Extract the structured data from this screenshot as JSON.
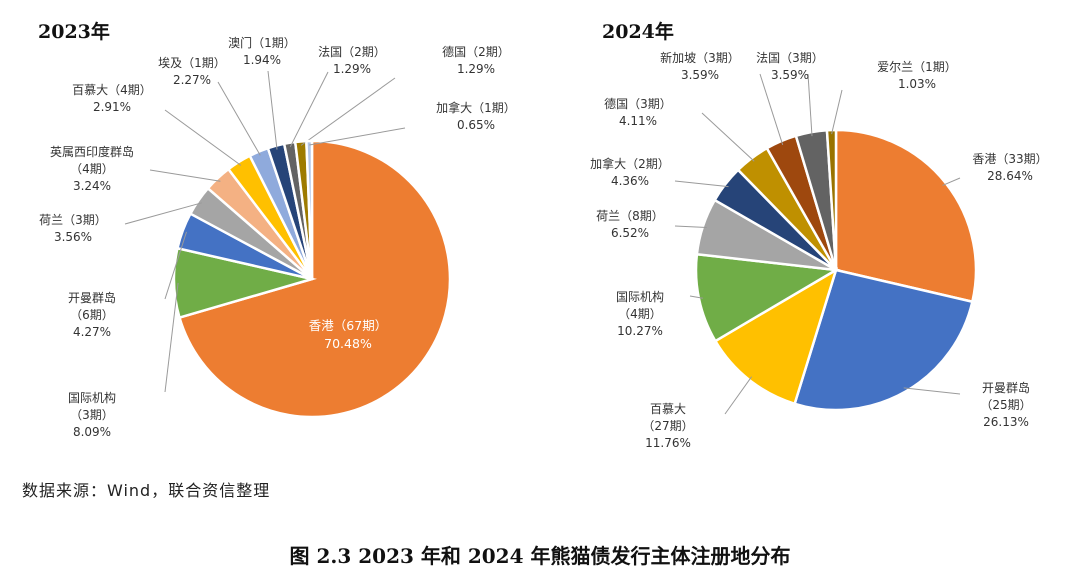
{
  "source": "数据来源：Wind，联合资信整理",
  "caption": "图 2.3    2023 年和 2024 年熊猫债发行主体注册地分布",
  "chart_data": [
    {
      "type": "pie",
      "title": "2023年",
      "series": [
        {
          "name": "香港（67期）",
          "value": 70.48,
          "label": "70.48%",
          "color": "#ED7D31"
        },
        {
          "name": "国际机构（3期）",
          "value": 8.09,
          "label": "8.09%",
          "color": "#70AD47"
        },
        {
          "name": "开曼群岛（6期）",
          "value": 4.27,
          "label": "4.27%",
          "color": "#4472C4"
        },
        {
          "name": "荷兰（3期）",
          "value": 3.56,
          "label": "3.56%",
          "color": "#A5A5A5"
        },
        {
          "name": "英属西印度群岛（4期）",
          "value": 3.24,
          "label": "3.24%",
          "color": "#F4B183"
        },
        {
          "name": "百慕大（4期）",
          "value": 2.91,
          "label": "2.91%",
          "color": "#FFC000"
        },
        {
          "name": "埃及（1期）",
          "value": 2.27,
          "label": "2.27%",
          "color": "#8FAADC"
        },
        {
          "name": "澳门（1期）",
          "value": 1.94,
          "label": "1.94%",
          "color": "#264478"
        },
        {
          "name": "法国（2期）",
          "value": 1.29,
          "label": "1.29%",
          "color": "#636363"
        },
        {
          "name": "德国（2期）",
          "value": 1.29,
          "label": "1.29%",
          "color": "#9E7B00"
        },
        {
          "name": "加拿大（1期）",
          "value": 0.65,
          "label": "0.65%",
          "color": "#B4C7E7"
        }
      ]
    },
    {
      "type": "pie",
      "title": "2024年",
      "series": [
        {
          "name": "香港（33期）",
          "value": 28.64,
          "label": "28.64%",
          "color": "#ED7D31"
        },
        {
          "name": "开曼群岛（25期）",
          "value": 26.13,
          "label": "26.13%",
          "color": "#4472C4"
        },
        {
          "name": "百慕大（27期）",
          "value": 11.76,
          "label": "11.76%",
          "color": "#FFC000"
        },
        {
          "name": "国际机构（4期）",
          "value": 10.27,
          "label": "10.27%",
          "color": "#70AD47"
        },
        {
          "name": "荷兰（8期）",
          "value": 6.52,
          "label": "6.52%",
          "color": "#A5A5A5"
        },
        {
          "name": "加拿大（2期）",
          "value": 4.36,
          "label": "4.36%",
          "color": "#264478"
        },
        {
          "name": "德国（3期）",
          "value": 4.11,
          "label": "4.11%",
          "color": "#BF9000"
        },
        {
          "name": "新加坡（3期）",
          "value": 3.59,
          "label": "3.59%",
          "color": "#9E480E"
        },
        {
          "name": "法国（3期）",
          "value": 3.59,
          "label": "3.59%",
          "color": "#636363"
        },
        {
          "name": "爱尔兰（1期）",
          "value": 1.03,
          "label": "1.03%",
          "color": "#997300"
        }
      ]
    }
  ]
}
